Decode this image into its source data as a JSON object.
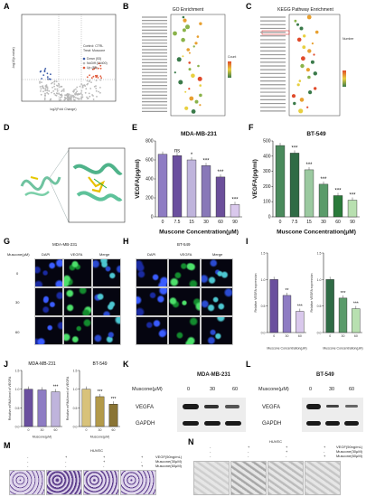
{
  "letters": [
    "A",
    "B",
    "C",
    "D",
    "E",
    "F",
    "G",
    "H",
    "I",
    "J",
    "K",
    "L",
    "M",
    "N"
  ],
  "panelA": {
    "xlabel": "log2(Fold Change)",
    "ylabel": "-log10(p-value)",
    "legend": [
      "Control: CTRL",
      "Treat:   Muscone",
      "Down (53)",
      "NoDiff (16400)",
      "Up (88)"
    ],
    "colors": {
      "up": "#e05a3a",
      "down": "#3b5ba8",
      "nodiff": "#b8b8b8"
    }
  },
  "panelB": {
    "title": "GO Enrichment",
    "legend_title": "Count"
  },
  "panelC": {
    "title": "KEGG Pathway Enrichment",
    "legend_title": "Number"
  },
  "chart_data": [
    {
      "type": "bar",
      "title": "MDA-MB-231",
      "xlabel": "Muscone Concentration(μM)",
      "ylabel": "VEGFA(pg/ml)",
      "categories": [
        "0",
        "7.5",
        "15",
        "30",
        "60",
        "90"
      ],
      "values": [
        660,
        645,
        600,
        540,
        420,
        130
      ],
      "significance": [
        "",
        "ns",
        "*",
        "***",
        "***",
        "***"
      ],
      "ylim": [
        0,
        800
      ],
      "yticks": [
        "0",
        "200",
        "400",
        "600",
        "800"
      ],
      "colors": [
        "#8e7cc3",
        "#6a4f9e",
        "#bfb4dc",
        "#8878b8",
        "#6b4f9a",
        "#d9c8ec"
      ]
    },
    {
      "type": "bar",
      "title": "BT-549",
      "xlabel": "Muscone Concentration(μM)",
      "ylabel": "VEGFA(pg/ml)",
      "categories": [
        "0",
        "7.5",
        "15",
        "30",
        "60",
        "90"
      ],
      "values": [
        470,
        420,
        310,
        215,
        140,
        110
      ],
      "significance": [
        "",
        "***",
        "***",
        "***",
        "***",
        "***"
      ],
      "ylim": [
        0,
        500
      ],
      "yticks": [
        "0",
        "100",
        "200",
        "300",
        "400",
        "500"
      ],
      "colors": [
        "#4a8a5c",
        "#2f6b45",
        "#9bc9a0",
        "#5a9b6a",
        "#2a7a3a",
        "#b8e0b0"
      ]
    },
    {
      "type": "bar",
      "title": "",
      "ylabel": "Relative VEGFA expression",
      "xlabel": "Muscone Concentration(μM)",
      "categories": [
        "0",
        "30",
        "60"
      ],
      "values": [
        1.0,
        0.7,
        0.4
      ],
      "significance": [
        "",
        "**",
        "***"
      ],
      "ylim": [
        0,
        1.5
      ],
      "yticks": [
        "0.0",
        "0.5",
        "1.0",
        "1.5"
      ],
      "colors": [
        "#6a4f9e",
        "#8e7cc3",
        "#d9c8ec"
      ]
    },
    {
      "type": "bar",
      "title": "",
      "ylabel": "Relative VEGFA expression",
      "xlabel": "Muscone Concentration(μM)",
      "categories": [
        "0",
        "30",
        "60"
      ],
      "values": [
        1.0,
        0.65,
        0.45
      ],
      "significance": [
        "",
        "***",
        "***"
      ],
      "ylim": [
        0,
        1.5
      ],
      "yticks": [
        "0.0",
        "0.5",
        "1.0",
        "1.5"
      ],
      "colors": [
        "#2f6b45",
        "#5a9b6a",
        "#b8e0b0"
      ]
    },
    {
      "type": "bar",
      "title": "MDA-MB-231",
      "ylabel": "Relative mRNA level of VEGFA",
      "xlabel": "Muscone(μM)",
      "categories": [
        "0",
        "30",
        "60"
      ],
      "values": [
        1.0,
        0.98,
        0.93
      ],
      "significance": [
        "",
        "",
        "***"
      ],
      "ylim": [
        0,
        1.5
      ],
      "yticks": [
        "0.0",
        "0.5",
        "1.0",
        "1.5"
      ],
      "colors": [
        "#6a4f9e",
        "#8e7cc3",
        "#bfb4dc"
      ]
    },
    {
      "type": "bar",
      "title": "BT-549",
      "ylabel": "Relative mRNA level of VEGFA",
      "xlabel": "Muscone(μM)",
      "categories": [
        "0",
        "30",
        "60"
      ],
      "values": [
        1.0,
        0.8,
        0.6
      ],
      "significance": [
        "",
        "***",
        "***"
      ],
      "ylim": [
        0,
        1.5
      ],
      "yticks": [
        "0.0",
        "0.5",
        "1.0",
        "1.5"
      ],
      "colors": [
        "#d8c27a",
        "#b39a4a",
        "#8a7434"
      ]
    }
  ],
  "panelG": {
    "title": "MDA-MB-231",
    "row_label": "Muscone(μM)",
    "cols": [
      "DAPI",
      "VEGFA",
      "Merge"
    ],
    "rows": [
      "0",
      "30",
      "60"
    ]
  },
  "panelH": {
    "title": "BT-549",
    "cols": [
      "DAPI",
      "VEGFA",
      "Merge"
    ]
  },
  "panelK": {
    "title": "MDA-MB-231",
    "row_label": "Muscone(μM)",
    "doses": [
      "0",
      "30",
      "60"
    ],
    "bands": [
      "VEGFA",
      "GAPDH"
    ]
  },
  "panelL": {
    "title": "BT-549",
    "row_label": "Muscone(μM)",
    "doses": [
      "0",
      "30",
      "60"
    ],
    "bands": [
      "VEGFA",
      "GAPDH"
    ]
  },
  "panelM": {
    "title": "HUVEC",
    "rows": [
      "VEGF(50ng/mL)",
      "Muscone(30μM)",
      "Muscone(60μM)"
    ],
    "marks": [
      [
        "-",
        "+",
        "+",
        "+"
      ],
      [
        "-",
        "-",
        "+",
        "-"
      ],
      [
        "-",
        "-",
        "-",
        "+"
      ]
    ]
  },
  "panelN": {
    "title": "HUVEC",
    "rows": [
      "VEGF(50ng/mL)",
      "Muscone(30μM)",
      "Muscone(60μM)"
    ],
    "marks": [
      [
        "-",
        "+",
        "+",
        "+"
      ],
      [
        "-",
        "-",
        "+",
        "-"
      ],
      [
        "-",
        "-",
        "-",
        "+"
      ]
    ]
  }
}
